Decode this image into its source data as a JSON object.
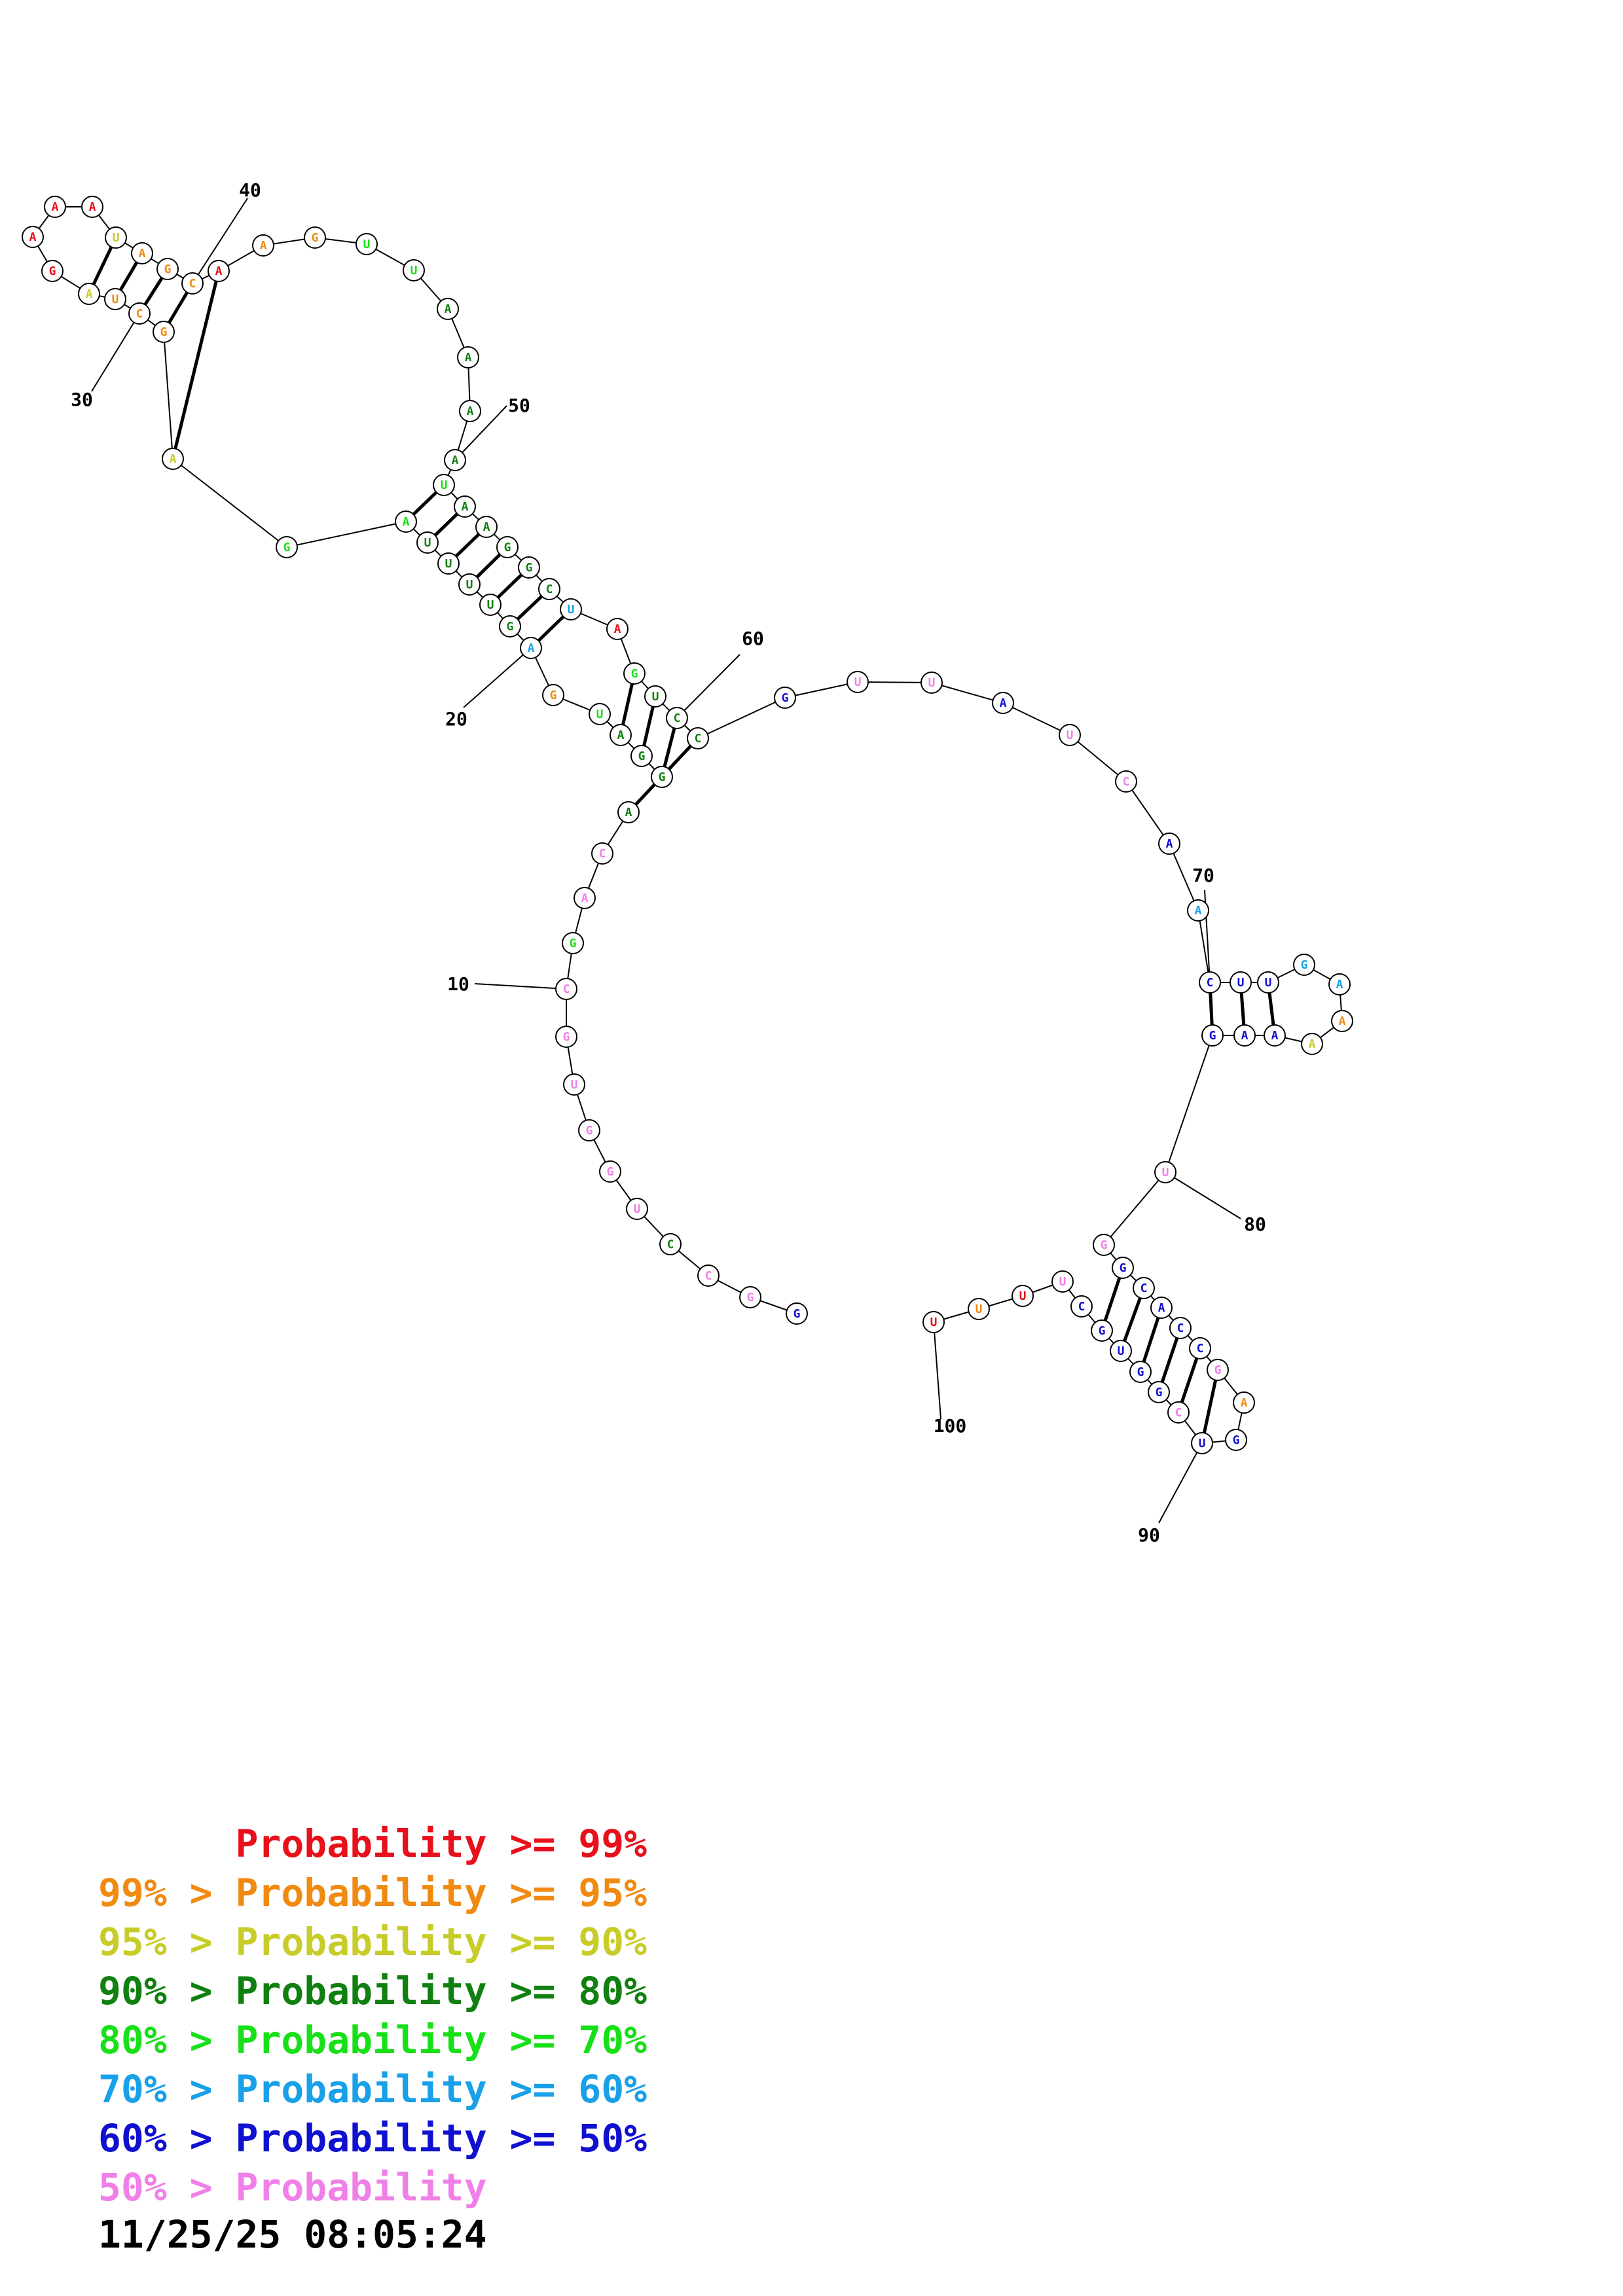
{
  "colors": {
    "p99": "#e8101a",
    "p95": "#f08a10",
    "p90": "#c8cc28",
    "p80": "#108010",
    "p70": "#18e018",
    "p60": "#18a0e8",
    "p50": "#1010d0",
    "plt50": "#f080e8"
  },
  "sequence": [
    {
      "b": "G",
      "c": "p50"
    },
    {
      "b": "G",
      "c": "plt50"
    },
    {
      "b": "C",
      "c": "plt50"
    },
    {
      "b": "C",
      "c": "p80"
    },
    {
      "b": "U",
      "c": "plt50"
    },
    {
      "b": "G",
      "c": "plt50"
    },
    {
      "b": "G",
      "c": "plt50"
    },
    {
      "b": "U",
      "c": "plt50"
    },
    {
      "b": "G",
      "c": "plt50"
    },
    {
      "b": "C",
      "c": "plt50"
    },
    {
      "b": "G",
      "c": "p70"
    },
    {
      "b": "A",
      "c": "plt50"
    },
    {
      "b": "C",
      "c": "plt50"
    },
    {
      "b": "A",
      "c": "p80"
    },
    {
      "b": "G",
      "c": "p80"
    },
    {
      "b": "G",
      "c": "p80"
    },
    {
      "b": "A",
      "c": "p80"
    },
    {
      "b": "U",
      "c": "p70"
    },
    {
      "b": "G",
      "c": "p95"
    },
    {
      "b": "A",
      "c": "p60"
    },
    {
      "b": "G",
      "c": "p80"
    },
    {
      "b": "U",
      "c": "p80"
    },
    {
      "b": "U",
      "c": "p80"
    },
    {
      "b": "U",
      "c": "p80"
    },
    {
      "b": "U",
      "c": "p80"
    },
    {
      "b": "A",
      "c": "p70"
    },
    {
      "b": "G",
      "c": "p70"
    },
    {
      "b": "A",
      "c": "p90"
    },
    {
      "b": "G",
      "c": "p95"
    },
    {
      "b": "C",
      "c": "p95"
    },
    {
      "b": "U",
      "c": "p95"
    },
    {
      "b": "A",
      "c": "p90"
    },
    {
      "b": "G",
      "c": "p99"
    },
    {
      "b": "A",
      "c": "p99"
    },
    {
      "b": "A",
      "c": "p99"
    },
    {
      "b": "A",
      "c": "p99"
    },
    {
      "b": "U",
      "c": "p90"
    },
    {
      "b": "A",
      "c": "p95"
    },
    {
      "b": "G",
      "c": "p95"
    },
    {
      "b": "C",
      "c": "p95"
    },
    {
      "b": "A",
      "c": "p99"
    },
    {
      "b": "A",
      "c": "p95"
    },
    {
      "b": "G",
      "c": "p95"
    },
    {
      "b": "U",
      "c": "p70"
    },
    {
      "b": "U",
      "c": "p70"
    },
    {
      "b": "A",
      "c": "p80"
    },
    {
      "b": "A",
      "c": "p80"
    },
    {
      "b": "A",
      "c": "p80"
    },
    {
      "b": "A",
      "c": "p80"
    },
    {
      "b": "U",
      "c": "p70"
    },
    {
      "b": "A",
      "c": "p80"
    },
    {
      "b": "A",
      "c": "p80"
    },
    {
      "b": "G",
      "c": "p80"
    },
    {
      "b": "G",
      "c": "p80"
    },
    {
      "b": "C",
      "c": "p80"
    },
    {
      "b": "U",
      "c": "p60"
    },
    {
      "b": "A",
      "c": "p99"
    },
    {
      "b": "G",
      "c": "p70"
    },
    {
      "b": "U",
      "c": "p80"
    },
    {
      "b": "C",
      "c": "p80"
    },
    {
      "b": "C",
      "c": "p80"
    },
    {
      "b": "G",
      "c": "p50"
    },
    {
      "b": "U",
      "c": "plt50"
    },
    {
      "b": "U",
      "c": "plt50"
    },
    {
      "b": "A",
      "c": "p50"
    },
    {
      "b": "U",
      "c": "plt50"
    },
    {
      "b": "C",
      "c": "plt50"
    },
    {
      "b": "A",
      "c": "p50"
    },
    {
      "b": "A",
      "c": "p60"
    },
    {
      "b": "C",
      "c": "p50"
    },
    {
      "b": "U",
      "c": "p50"
    },
    {
      "b": "U",
      "c": "p50"
    },
    {
      "b": "G",
      "c": "p60"
    },
    {
      "b": "A",
      "c": "p60"
    },
    {
      "b": "A",
      "c": "p95"
    },
    {
      "b": "A",
      "c": "p90"
    },
    {
      "b": "A",
      "c": "p50"
    },
    {
      "b": "A",
      "c": "p50"
    },
    {
      "b": "G",
      "c": "p50"
    },
    {
      "b": "U",
      "c": "plt50"
    },
    {
      "b": "G",
      "c": "plt50"
    },
    {
      "b": "G",
      "c": "p50"
    },
    {
      "b": "C",
      "c": "p50"
    },
    {
      "b": "A",
      "c": "p50"
    },
    {
      "b": "C",
      "c": "p50"
    },
    {
      "b": "C",
      "c": "p50"
    },
    {
      "b": "G",
      "c": "plt50"
    },
    {
      "b": "A",
      "c": "p95"
    },
    {
      "b": "G",
      "c": "p50"
    },
    {
      "b": "U",
      "c": "p50"
    },
    {
      "b": "C",
      "c": "plt50"
    },
    {
      "b": "G",
      "c": "p50"
    },
    {
      "b": "G",
      "c": "p50"
    },
    {
      "b": "U",
      "c": "p50"
    },
    {
      "b": "G",
      "c": "p50"
    },
    {
      "b": "C",
      "c": "p50"
    },
    {
      "b": "U",
      "c": "plt50"
    },
    {
      "b": "U",
      "c": "p99"
    },
    {
      "b": "U",
      "c": "p95"
    },
    {
      "b": "U",
      "c": "p99"
    }
  ],
  "pairs": [
    [
      14,
      61
    ],
    [
      15,
      60
    ],
    [
      16,
      59
    ],
    [
      17,
      58
    ],
    [
      20,
      56
    ],
    [
      21,
      55
    ],
    [
      22,
      54
    ],
    [
      23,
      53
    ],
    [
      24,
      52
    ],
    [
      25,
      51
    ],
    [
      26,
      50
    ],
    [
      28,
      41
    ],
    [
      29,
      40
    ],
    [
      30,
      39
    ],
    [
      31,
      38
    ],
    [
      32,
      37
    ],
    [
      70,
      79
    ],
    [
      71,
      78
    ],
    [
      72,
      77
    ],
    [
      82,
      95
    ],
    [
      83,
      94
    ],
    [
      84,
      93
    ],
    [
      85,
      92
    ],
    [
      86,
      91
    ],
    [
      87,
      90
    ]
  ],
  "numbers": [
    "10",
    "20",
    "30",
    "40",
    "50",
    "60",
    "70",
    "80",
    "90",
    "100"
  ],
  "legend": [
    {
      "prefix": "",
      "text": "Probability >= 99%",
      "c": "p99"
    },
    {
      "prefix": "99% > ",
      "text": "Probability >= 95%",
      "c": "p95"
    },
    {
      "prefix": "95% > ",
      "text": "Probability >= 90%",
      "c": "p90"
    },
    {
      "prefix": "90% > ",
      "text": "Probability >= 80%",
      "c": "p80"
    },
    {
      "prefix": "80% > ",
      "text": "Probability >= 70%",
      "c": "p70"
    },
    {
      "prefix": "70% > ",
      "text": "Probability >= 60%",
      "c": "p60"
    },
    {
      "prefix": "60% > ",
      "text": "Probability >= 50%",
      "c": "p50"
    },
    {
      "prefix": "50% > ",
      "text": "Probability",
      "c": "plt50"
    }
  ],
  "timestamp": "11/25/25 08:05:24"
}
